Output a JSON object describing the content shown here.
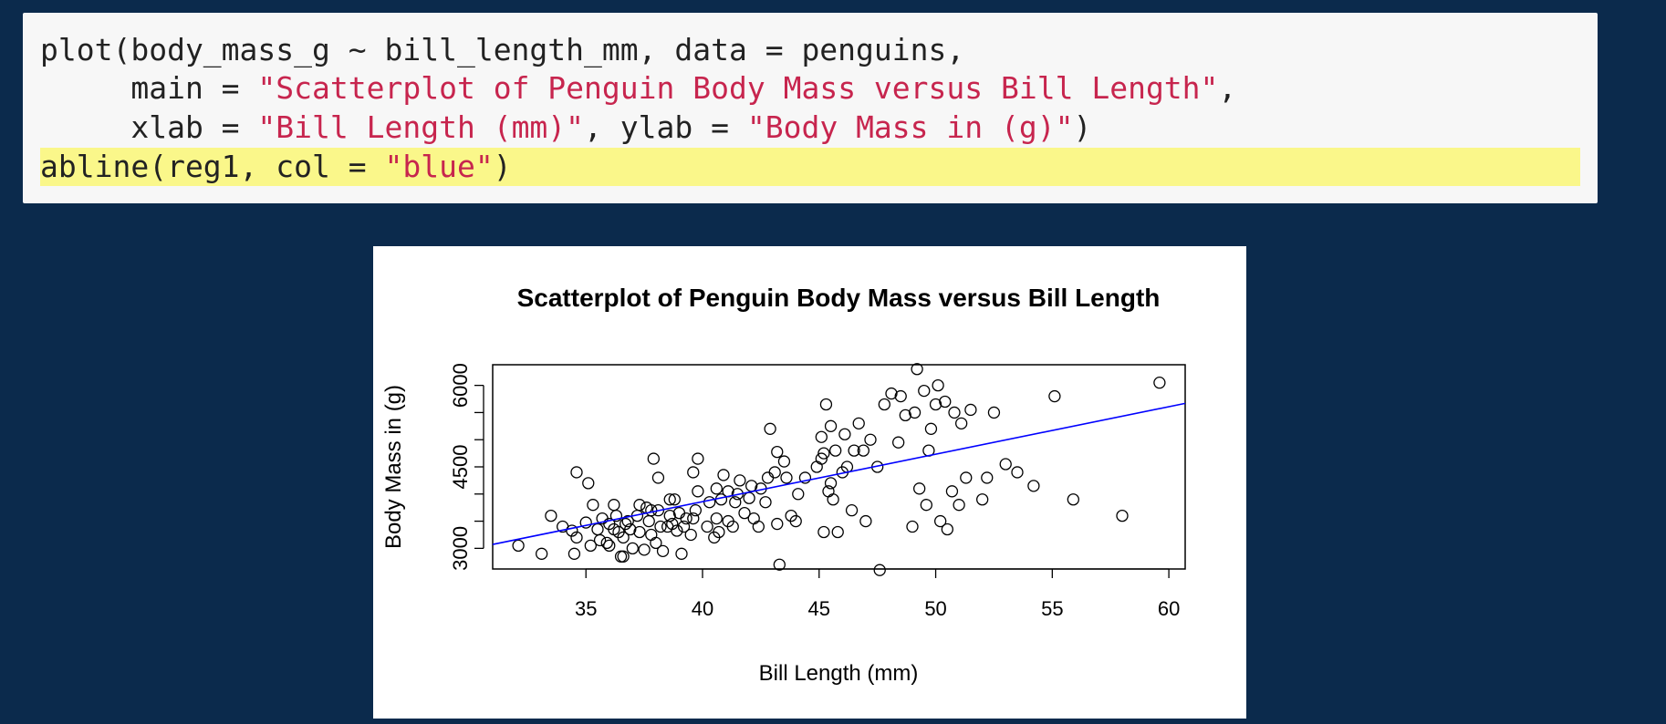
{
  "code": {
    "lines": [
      {
        "parts": [
          {
            "t": "plot(body_mass_g ~ bill_length_mm, data = penguins,",
            "s": false
          }
        ]
      },
      {
        "parts": [
          {
            "t": "     main = ",
            "s": false
          },
          {
            "t": "\"Scatterplot of Penguin Body Mass versus Bill Length\"",
            "s": true
          },
          {
            "t": ",",
            "s": false
          }
        ]
      },
      {
        "parts": [
          {
            "t": "     xlab = ",
            "s": false
          },
          {
            "t": "\"Bill Length (mm)\"",
            "s": true
          },
          {
            "t": ", ylab = ",
            "s": false
          },
          {
            "t": "\"Body Mass in (g)\"",
            "s": true
          },
          {
            "t": ")",
            "s": false
          }
        ]
      },
      {
        "parts": [
          {
            "t": "abline(reg1, col = ",
            "s": false
          },
          {
            "t": "\"blue\"",
            "s": true
          },
          {
            "t": ")",
            "s": false
          }
        ],
        "highlight": true
      }
    ]
  },
  "chart_data": {
    "type": "scatter",
    "title": "Scatterplot of Penguin Body Mass versus Bill Length",
    "xlabel": "Bill Length (mm)",
    "ylabel": "Body Mass in (g)",
    "xlim": [
      31,
      60.7
    ],
    "ylim": [
      2620,
      6380
    ],
    "xticks": [
      35,
      40,
      45,
      50,
      55,
      60
    ],
    "yticks": [
      3000,
      3500,
      4000,
      4500,
      5000,
      5500,
      6000
    ],
    "ytick_labels": [
      "3000",
      "",
      "",
      "4500",
      "",
      "",
      "6000"
    ],
    "colors": {
      "points": "#000000",
      "regression_line": "#0000ff"
    },
    "regression_line": {
      "intercept": 362.3,
      "slope": 87.415
    },
    "points": [
      [
        32.1,
        3050
      ],
      [
        33.1,
        2900
      ],
      [
        33.5,
        3600
      ],
      [
        34.0,
        3400
      ],
      [
        34.4,
        3325
      ],
      [
        34.5,
        2900
      ],
      [
        34.6,
        4400
      ],
      [
        34.6,
        3200
      ],
      [
        35.0,
        3475
      ],
      [
        35.1,
        4200
      ],
      [
        35.2,
        3050
      ],
      [
        35.3,
        3800
      ],
      [
        35.5,
        3350
      ],
      [
        35.6,
        3150
      ],
      [
        35.7,
        3550
      ],
      [
        35.9,
        3100
      ],
      [
        36.0,
        3050
      ],
      [
        36.0,
        3450
      ],
      [
        36.2,
        3350
      ],
      [
        36.2,
        3800
      ],
      [
        36.3,
        3600
      ],
      [
        36.4,
        3300
      ],
      [
        36.5,
        2850
      ],
      [
        36.6,
        2850
      ],
      [
        36.6,
        3200
      ],
      [
        36.7,
        3450
      ],
      [
        36.8,
        3500
      ],
      [
        36.9,
        3350
      ],
      [
        37.0,
        3000
      ],
      [
        37.2,
        3600
      ],
      [
        37.3,
        3300
      ],
      [
        37.3,
        3800
      ],
      [
        37.5,
        2975
      ],
      [
        37.6,
        3750
      ],
      [
        37.7,
        3500
      ],
      [
        37.8,
        3250
      ],
      [
        37.8,
        3700
      ],
      [
        37.9,
        4650
      ],
      [
        38.0,
        3100
      ],
      [
        38.1,
        3700
      ],
      [
        38.1,
        4300
      ],
      [
        38.2,
        3400
      ],
      [
        38.3,
        2950
      ],
      [
        38.5,
        3400
      ],
      [
        38.6,
        3600
      ],
      [
        38.6,
        3900
      ],
      [
        38.7,
        3450
      ],
      [
        38.8,
        3900
      ],
      [
        38.9,
        3325
      ],
      [
        39.0,
        3650
      ],
      [
        39.1,
        2900
      ],
      [
        39.2,
        3400
      ],
      [
        39.3,
        3550
      ],
      [
        39.5,
        3250
      ],
      [
        39.6,
        3550
      ],
      [
        39.6,
        4400
      ],
      [
        39.7,
        3700
      ],
      [
        39.8,
        4050
      ],
      [
        39.8,
        4650
      ],
      [
        40.2,
        3400
      ],
      [
        40.3,
        3850
      ],
      [
        40.5,
        3200
      ],
      [
        40.6,
        3550
      ],
      [
        40.6,
        4100
      ],
      [
        40.7,
        3300
      ],
      [
        40.8,
        3900
      ],
      [
        40.9,
        4350
      ],
      [
        41.1,
        3500
      ],
      [
        41.1,
        4050
      ],
      [
        41.3,
        3400
      ],
      [
        41.4,
        3850
      ],
      [
        41.5,
        4000
      ],
      [
        41.6,
        4250
      ],
      [
        41.8,
        3650
      ],
      [
        42.0,
        3925
      ],
      [
        42.1,
        4150
      ],
      [
        42.2,
        3550
      ],
      [
        42.4,
        3400
      ],
      [
        42.5,
        4100
      ],
      [
        42.7,
        3850
      ],
      [
        42.8,
        4300
      ],
      [
        42.9,
        5200
      ],
      [
        43.1,
        4400
      ],
      [
        43.2,
        4775
      ],
      [
        43.2,
        3450
      ],
      [
        43.3,
        2700
      ],
      [
        43.5,
        4600
      ],
      [
        43.6,
        4300
      ],
      [
        43.8,
        3600
      ],
      [
        44.0,
        3500
      ],
      [
        44.1,
        4000
      ],
      [
        44.4,
        4300
      ],
      [
        44.9,
        4500
      ],
      [
        45.1,
        4650
      ],
      [
        45.1,
        5050
      ],
      [
        45.2,
        4750
      ],
      [
        45.2,
        3300
      ],
      [
        45.3,
        5650
      ],
      [
        45.4,
        4050
      ],
      [
        45.5,
        4200
      ],
      [
        45.5,
        5250
      ],
      [
        45.6,
        3900
      ],
      [
        45.7,
        4800
      ],
      [
        45.8,
        3300
      ],
      [
        46.0,
        4400
      ],
      [
        46.1,
        5100
      ],
      [
        46.2,
        4500
      ],
      [
        46.4,
        3700
      ],
      [
        46.5,
        4800
      ],
      [
        46.7,
        5300
      ],
      [
        46.9,
        4800
      ],
      [
        47.0,
        3500
      ],
      [
        47.2,
        5000
      ],
      [
        47.5,
        4500
      ],
      [
        47.6,
        2600
      ],
      [
        47.8,
        5650
      ],
      [
        48.1,
        5850
      ],
      [
        48.4,
        4950
      ],
      [
        48.5,
        5800
      ],
      [
        48.7,
        5450
      ],
      [
        49.0,
        3400
      ],
      [
        49.1,
        5500
      ],
      [
        49.2,
        6300
      ],
      [
        49.3,
        4100
      ],
      [
        49.5,
        5900
      ],
      [
        49.6,
        3800
      ],
      [
        49.7,
        4800
      ],
      [
        49.8,
        5200
      ],
      [
        50.0,
        5650
      ],
      [
        50.1,
        6000
      ],
      [
        50.2,
        3500
      ],
      [
        50.4,
        5700
      ],
      [
        50.5,
        3350
      ],
      [
        50.7,
        4050
      ],
      [
        50.8,
        5500
      ],
      [
        51.0,
        3800
      ],
      [
        51.1,
        5300
      ],
      [
        51.3,
        4300
      ],
      [
        51.5,
        5550
      ],
      [
        52.0,
        3900
      ],
      [
        52.2,
        4300
      ],
      [
        52.5,
        5500
      ],
      [
        53.0,
        4550
      ],
      [
        53.5,
        4400
      ],
      [
        54.2,
        4150
      ],
      [
        55.1,
        5800
      ],
      [
        55.9,
        3900
      ],
      [
        58.0,
        3600
      ],
      [
        59.6,
        6050
      ]
    ]
  }
}
